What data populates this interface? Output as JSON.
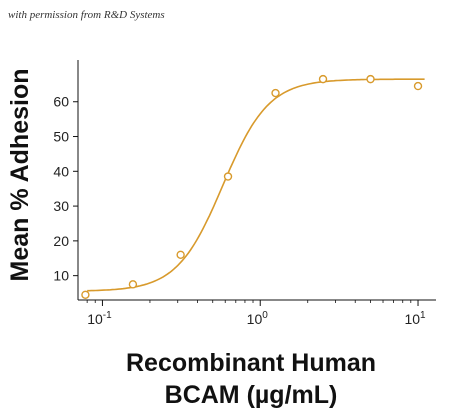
{
  "caption": "with permission from R&D Systems",
  "chart_data": {
    "type": "scatter",
    "xlabel_lines": [
      "Recombinant Human",
      "BCAM (µg/mL)"
    ],
    "ylabel": "Mean % Adhesion",
    "x_scale": "log",
    "xlim": [
      0.07,
      13
    ],
    "ylim": [
      3,
      72
    ],
    "grid": false,
    "x_ticks": [
      {
        "value": 0.1,
        "base": "10",
        "exp": "-1"
      },
      {
        "value": 1,
        "base": "10",
        "exp": "0"
      },
      {
        "value": 10,
        "base": "10",
        "exp": "1"
      }
    ],
    "y_ticks": [
      10,
      20,
      30,
      40,
      50,
      60
    ],
    "series": [
      {
        "points": [
          {
            "x": 0.078,
            "y": 4.5
          },
          {
            "x": 0.156,
            "y": 7.5
          },
          {
            "x": 0.313,
            "y": 16
          },
          {
            "x": 0.625,
            "y": 38.5
          },
          {
            "x": 1.25,
            "y": 62.5
          },
          {
            "x": 2.5,
            "y": 66.5
          },
          {
            "x": 5,
            "y": 66.5
          },
          {
            "x": 10,
            "y": 64.5
          }
        ],
        "fit": {
          "model": "4PL",
          "bottom": 5.5,
          "top": 66.5,
          "ec50": 0.58,
          "hill": 3.0
        },
        "color": "#D89A2C"
      }
    ]
  }
}
